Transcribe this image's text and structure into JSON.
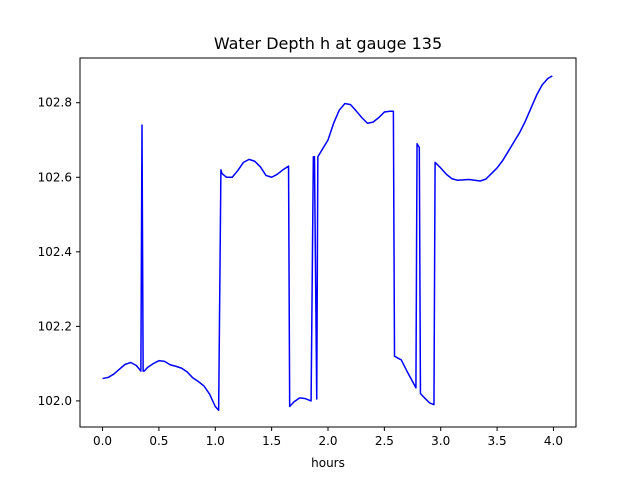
{
  "chart_data": {
    "type": "line",
    "title": "Water Depth h at gauge 135",
    "xlabel": "hours",
    "ylabel": "",
    "xlim": [
      -0.2,
      4.2
    ],
    "ylim": [
      101.93,
      102.92
    ],
    "xticks": [
      0.0,
      0.5,
      1.0,
      1.5,
      2.0,
      2.5,
      3.0,
      3.5,
      4.0
    ],
    "xtick_labels": [
      "0.0",
      "0.5",
      "1.0",
      "1.5",
      "2.0",
      "2.5",
      "3.0",
      "3.5",
      "4.0"
    ],
    "yticks": [
      102.0,
      102.2,
      102.4,
      102.6,
      102.8
    ],
    "ytick_labels": [
      "102.0",
      "102.2",
      "102.4",
      "102.6",
      "102.8"
    ],
    "grid": false,
    "series": [
      {
        "color": "#0000ff",
        "x": [
          0.0,
          0.05,
          0.1,
          0.15,
          0.2,
          0.25,
          0.3,
          0.34,
          0.35,
          0.36,
          0.37,
          0.4,
          0.45,
          0.5,
          0.55,
          0.6,
          0.65,
          0.7,
          0.75,
          0.8,
          0.85,
          0.9,
          0.95,
          1.0,
          1.03,
          1.05,
          1.06,
          1.1,
          1.15,
          1.2,
          1.25,
          1.3,
          1.35,
          1.4,
          1.45,
          1.5,
          1.55,
          1.6,
          1.65,
          1.66,
          1.7,
          1.75,
          1.8,
          1.85,
          1.87,
          1.88,
          1.9,
          1.91,
          1.92,
          1.95,
          2.0,
          2.05,
          2.1,
          2.15,
          2.2,
          2.25,
          2.3,
          2.35,
          2.4,
          2.45,
          2.5,
          2.55,
          2.58,
          2.59,
          2.65,
          2.7,
          2.75,
          2.78,
          2.79,
          2.81,
          2.82,
          2.85,
          2.9,
          2.94,
          2.95,
          3.0,
          3.05,
          3.1,
          3.15,
          3.2,
          3.25,
          3.3,
          3.35,
          3.4,
          3.45,
          3.5,
          3.55,
          3.6,
          3.65,
          3.7,
          3.75,
          3.8,
          3.85,
          3.9,
          3.95,
          3.99
        ],
        "y": [
          102.06,
          102.063,
          102.072,
          102.085,
          102.098,
          102.103,
          102.095,
          102.08,
          102.74,
          102.08,
          102.08,
          102.09,
          102.1,
          102.108,
          102.106,
          102.097,
          102.093,
          102.088,
          102.078,
          102.062,
          102.052,
          102.04,
          102.018,
          101.985,
          101.975,
          102.62,
          102.61,
          102.6,
          102.6,
          102.618,
          102.64,
          102.648,
          102.643,
          102.628,
          102.605,
          102.6,
          102.608,
          102.62,
          102.63,
          101.985,
          101.998,
          102.008,
          102.006,
          102.0,
          102.655,
          102.655,
          102.005,
          102.655,
          102.66,
          102.675,
          102.7,
          102.745,
          102.78,
          102.798,
          102.795,
          102.778,
          102.76,
          102.745,
          102.748,
          102.76,
          102.775,
          102.777,
          102.777,
          102.12,
          102.11,
          102.08,
          102.052,
          102.035,
          102.69,
          102.68,
          102.02,
          102.01,
          101.995,
          101.99,
          102.64,
          102.625,
          102.608,
          102.596,
          102.592,
          102.593,
          102.594,
          102.592,
          102.59,
          102.595,
          102.61,
          102.625,
          102.645,
          102.67,
          102.695,
          102.72,
          102.75,
          102.785,
          102.82,
          102.848,
          102.865,
          102.872
        ]
      }
    ]
  }
}
